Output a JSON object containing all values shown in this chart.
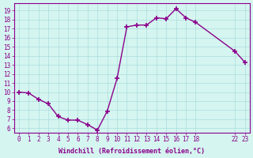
{
  "x": [
    0,
    1,
    2,
    3,
    4,
    5,
    6,
    7,
    8,
    9,
    10,
    11,
    12,
    13,
    14,
    15,
    16,
    17,
    18,
    22,
    23
  ],
  "y": [
    10,
    9.9,
    9.2,
    8.7,
    7.3,
    6.9,
    6.9,
    6.4,
    5.8,
    7.9,
    11.5,
    17.2,
    17.4,
    17.4,
    18.2,
    18.1,
    19.2,
    18.2,
    17.7,
    14.5,
    13.3
  ],
  "line_color": "#8B008B",
  "marker_color": "#8B008B",
  "bg_color": "#d5f5f0",
  "grid_color": "#aadddd",
  "axis_color": "#8B008B",
  "xlabel": "Windchill (Refroidissement éolien,°C)",
  "xticks": [
    0,
    1,
    2,
    3,
    4,
    5,
    6,
    7,
    8,
    9,
    10,
    11,
    12,
    13,
    14,
    15,
    16,
    17,
    18,
    22,
    23
  ],
  "xtick_labels": [
    "0",
    "1",
    "2",
    "3",
    "4",
    "5",
    "6",
    "7",
    "8",
    "9",
    "10",
    "11",
    "12",
    "13",
    "14",
    "15",
    "16",
    "17",
    "18",
    "22",
    "23"
  ],
  "yticks": [
    6,
    7,
    8,
    9,
    10,
    11,
    12,
    13,
    14,
    15,
    16,
    17,
    18,
    19
  ],
  "ytick_labels": [
    "6",
    "7",
    "8",
    "9",
    "10",
    "11",
    "12",
    "13",
    "14",
    "15",
    "16",
    "17",
    "18",
    "19"
  ],
  "ylim": [
    5.5,
    19.8
  ],
  "xlim": [
    -0.5,
    23.5
  ]
}
